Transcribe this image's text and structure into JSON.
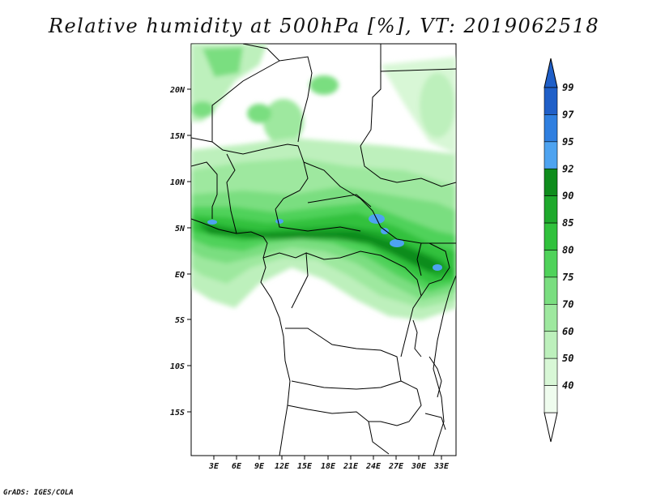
{
  "title": "Relative humidity at 500hPa [%], VT: 2019062518",
  "credit": "GrADS: IGES/COLA",
  "map": {
    "lat_ticks": [
      "20N",
      "15N",
      "10N",
      "5N",
      "EQ",
      "5S",
      "10S",
      "15S"
    ],
    "lon_ticks": [
      "3E",
      "6E",
      "9E",
      "12E",
      "15E",
      "18E",
      "21E",
      "24E",
      "27E",
      "30E",
      "33E"
    ]
  },
  "colorbar": {
    "labels": [
      "99",
      "97",
      "95",
      "92",
      "90",
      "85",
      "80",
      "75",
      "70",
      "60",
      "50",
      "40"
    ],
    "colors": [
      "#1f5fc8",
      "#2f7fe0",
      "#4ea3f0",
      "#0e8c1c",
      "#1ea92c",
      "#30c13c",
      "#4fd25a",
      "#7ade80",
      "#9ee89f",
      "#bdf0bc",
      "#d8f7d6",
      "#effcee"
    ]
  }
}
